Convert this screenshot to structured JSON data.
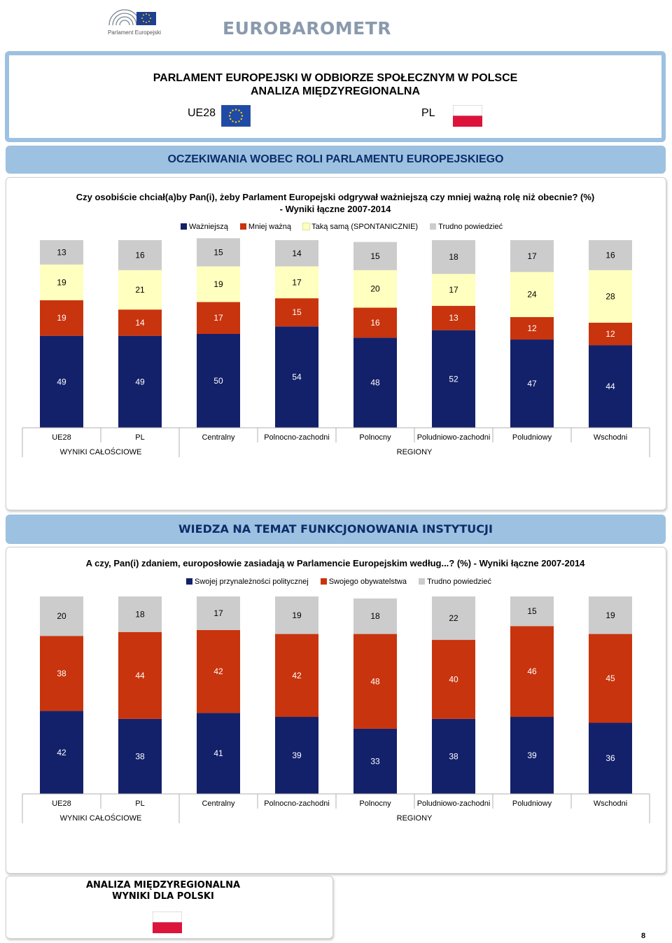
{
  "header": {
    "logo_text": "Parlament Europejski",
    "brand": "EUROBAROMETR"
  },
  "title": {
    "line1": "PARLAMENT EUROPEJSKI W ODBIORZE SPOŁECZNYM W POLSCE",
    "line2": "ANALIZA MIĘDZYREGIONALNA",
    "ue_label": "UE28",
    "pl_label": "PL"
  },
  "colors": {
    "navy": "#13216a",
    "red": "#c8340d",
    "yellow": "#ffffbf",
    "gray": "#cccccc",
    "section_bg": "#9dc1e0",
    "section_text": "#0b2d6b"
  },
  "section1": {
    "heading": "OCZEKIWANIA WOBEC ROLI PARLAMENTU EUROPEJSKIEGO",
    "question_line1": "Czy osobiście chciał(a)by Pan(i), żeby Parlament Europejski odgrywał ważniejszą czy mniej ważną rolę niż obecnie? (%)",
    "question_line2": "- Wyniki łączne 2007-2014",
    "legend": [
      "Ważniejszą",
      "Mniej ważną",
      "Taką samą (SPONTANICZNIE)",
      "Trudno powiedzieć"
    ]
  },
  "section2": {
    "heading": "WIEDZA NA TEMAT FUNKCJONOWANIA INSTYTUCJI",
    "question": "A czy, Pan(i) zdaniem, europosłowie zasiadają w Parlamencie Europejskim według...? (%) - Wyniki łączne 2007-2014",
    "legend": [
      "Swojej przynależności politycznej",
      "Swojego obywatelstwa",
      "Trudno powiedzieć"
    ]
  },
  "chart_data": [
    {
      "type": "bar",
      "stacked": true,
      "categories": [
        "UE28",
        "PL",
        "Centralny",
        "Polnocno-zachodni",
        "Polnocny",
        "Poludniowo-zachodni",
        "Poludniowy",
        "Wschodni"
      ],
      "groups": [
        {
          "label": "WYNIKI CAŁOŚCIOWE",
          "span": 2
        },
        {
          "label": "REGIONY",
          "span": 6
        }
      ],
      "series": [
        {
          "name": "Ważniejszą",
          "values": [
            49,
            49,
            50,
            54,
            48,
            52,
            47,
            44
          ]
        },
        {
          "name": "Mniej ważną",
          "values": [
            19,
            14,
            17,
            15,
            16,
            13,
            12,
            12
          ]
        },
        {
          "name": "Taką samą (SPONTANICZNIE)",
          "values": [
            19,
            21,
            19,
            17,
            20,
            17,
            24,
            28
          ]
        },
        {
          "name": "Trudno powiedzieć",
          "values": [
            13,
            16,
            15,
            14,
            15,
            18,
            17,
            16
          ]
        }
      ],
      "ylim": [
        0,
        100
      ]
    },
    {
      "type": "bar",
      "stacked": true,
      "categories": [
        "UE28",
        "PL",
        "Centralny",
        "Polnocno-zachodni",
        "Polnocny",
        "Poludniowo-zachodni",
        "Poludniowy",
        "Wschodni"
      ],
      "groups": [
        {
          "label": "WYNIKI CAŁOŚCIOWE",
          "span": 2
        },
        {
          "label": "REGIONY",
          "span": 6
        }
      ],
      "series": [
        {
          "name": "Swojej przynależności politycznej",
          "values": [
            42,
            38,
            41,
            39,
            33,
            38,
            39,
            36
          ]
        },
        {
          "name": "Swojego obywatelstwa",
          "values": [
            38,
            44,
            42,
            42,
            48,
            40,
            46,
            45
          ]
        },
        {
          "name": "Trudno powiedzieć",
          "values": [
            20,
            18,
            17,
            19,
            18,
            22,
            15,
            19
          ]
        }
      ],
      "ylim": [
        0,
        100
      ]
    }
  ],
  "footer": {
    "line1": "ANALIZA MIĘDZYREGIONALNA",
    "line2": "WYNIKI DLA POLSKI",
    "page": "8"
  }
}
